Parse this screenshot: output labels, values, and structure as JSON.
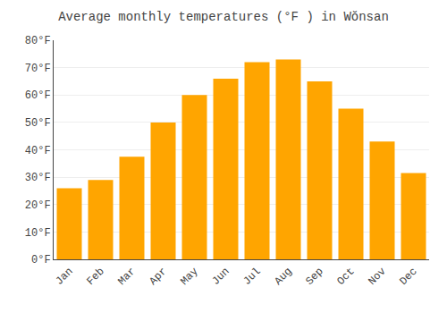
{
  "chart_data": {
    "type": "bar",
    "title": "Average monthly temperatures (°F ) in Wŏnsan",
    "categories": [
      "Jan",
      "Feb",
      "Mar",
      "Apr",
      "May",
      "Jun",
      "Jul",
      "Aug",
      "Sep",
      "Oct",
      "Nov",
      "Dec"
    ],
    "values": [
      26,
      29,
      37.5,
      50,
      60,
      66,
      72,
      73,
      65,
      55,
      43,
      31.5
    ],
    "color": "#FFA500",
    "ylim": [
      0,
      80
    ],
    "yticks": [
      {
        "value": 0,
        "label": "0°F"
      },
      {
        "value": 10,
        "label": "10°F"
      },
      {
        "value": 20,
        "label": "20°F"
      },
      {
        "value": 30,
        "label": "30°F"
      },
      {
        "value": 40,
        "label": "40°F"
      },
      {
        "value": 50,
        "label": "50°F"
      },
      {
        "value": 60,
        "label": "60°F"
      },
      {
        "value": 70,
        "label": "70°F"
      },
      {
        "value": 80,
        "label": "80°F"
      }
    ],
    "grid": true
  }
}
